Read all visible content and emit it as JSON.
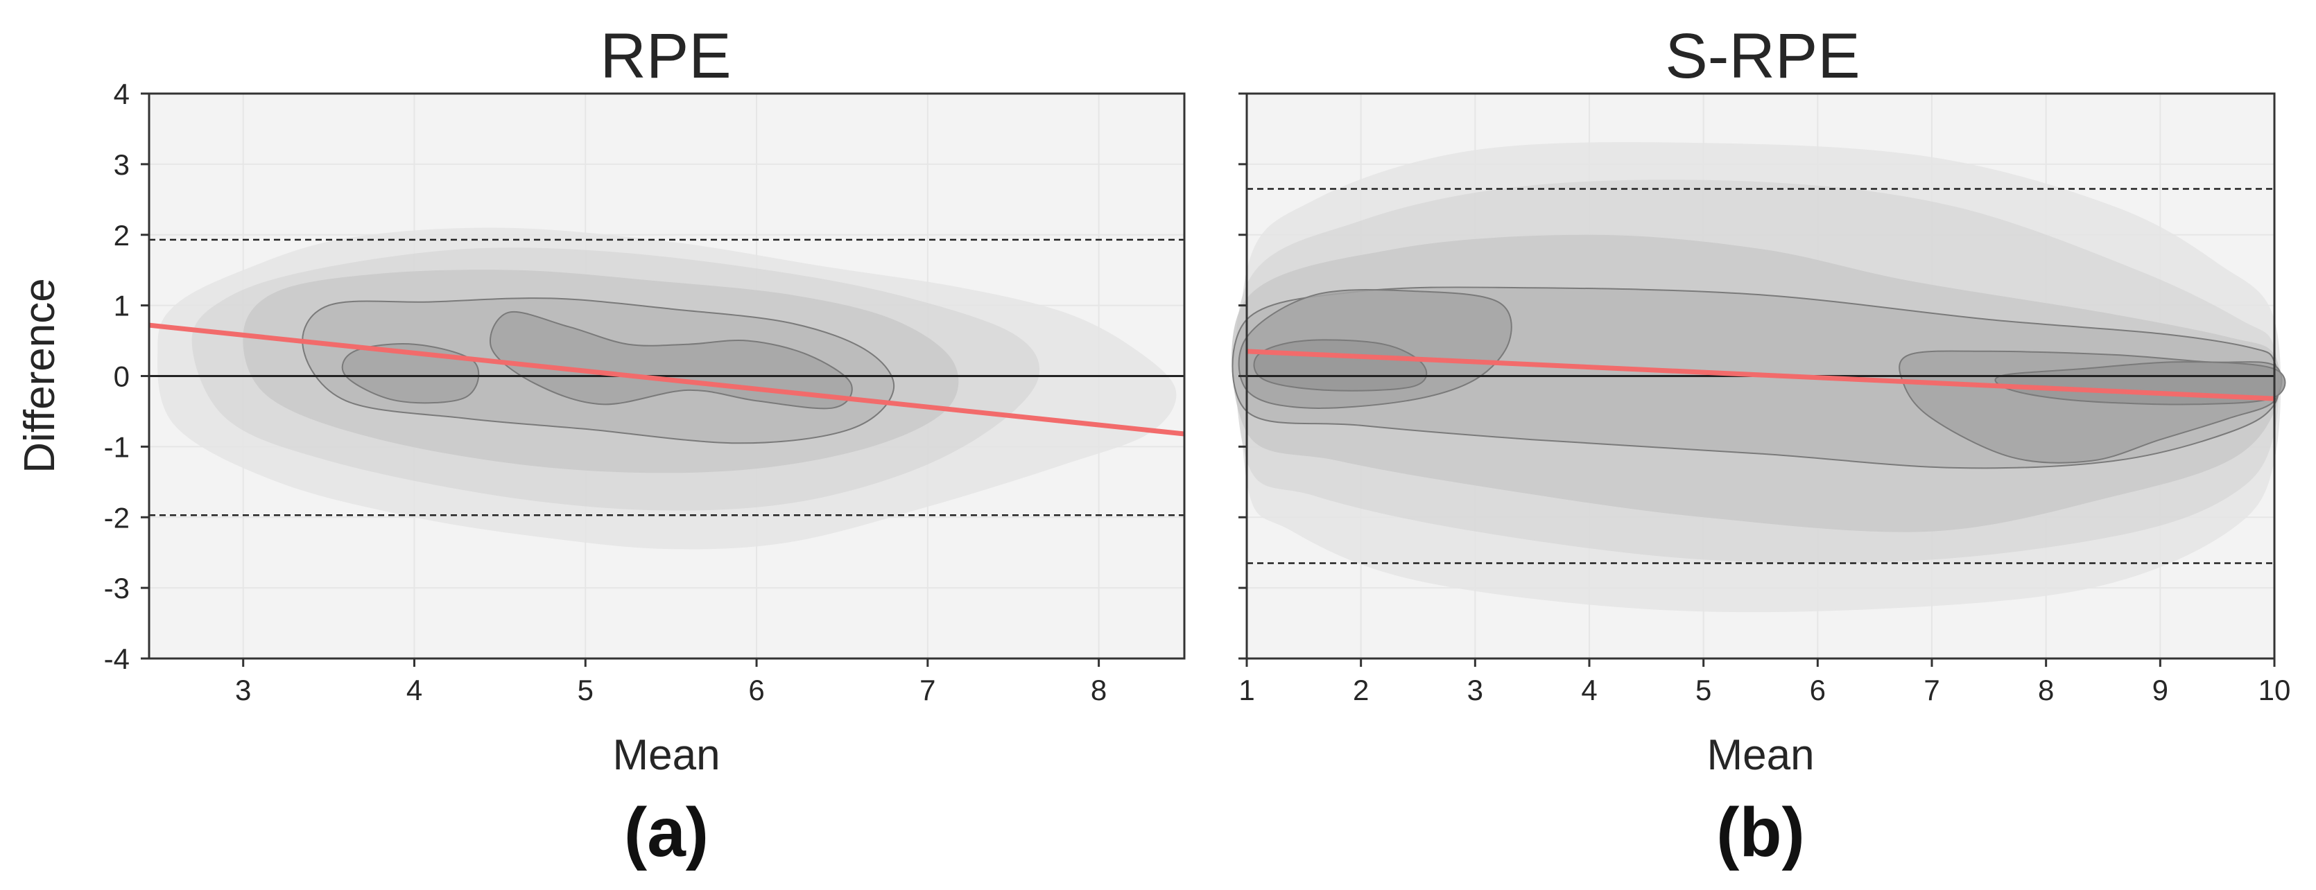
{
  "chart_data": [
    {
      "id": "a",
      "type": "contour",
      "title": "RPE",
      "panel_label": "(a)",
      "xlabel": "Mean",
      "ylabel": "Difference",
      "xlim": [
        2.45,
        8.5
      ],
      "ylim": [
        -4,
        4
      ],
      "xticks": [
        3,
        4,
        5,
        6,
        7,
        8
      ],
      "yticks": [
        -4,
        -3,
        -2,
        -1,
        0,
        1,
        2,
        3,
        4
      ],
      "grid": true,
      "zero_line": 0,
      "limits_of_agreement": [
        1.93,
        -1.97
      ],
      "regression_line": {
        "x": [
          2.45,
          8.5
        ],
        "y": [
          0.72,
          -0.82
        ],
        "color": "#f26b6b"
      },
      "density_contours": [
        {
          "level": 1,
          "fill": "#e4e4e4",
          "points": [
            [
              2.5,
              0.4
            ],
            [
              2.6,
              1.0
            ],
            [
              3.0,
              1.5
            ],
            [
              3.6,
              1.95
            ],
            [
              4.5,
              2.1
            ],
            [
              5.5,
              1.9
            ],
            [
              6.4,
              1.55
            ],
            [
              7.2,
              1.25
            ],
            [
              7.8,
              0.9
            ],
            [
              8.2,
              0.4
            ],
            [
              8.45,
              -0.2
            ],
            [
              8.3,
              -0.8
            ],
            [
              7.8,
              -1.25
            ],
            [
              7.0,
              -1.85
            ],
            [
              6.2,
              -2.35
            ],
            [
              5.5,
              -2.45
            ],
            [
              4.8,
              -2.3
            ],
            [
              4.0,
              -2.0
            ],
            [
              3.2,
              -1.5
            ],
            [
              2.6,
              -0.7
            ]
          ]
        },
        {
          "level": 2,
          "fill": "#d8d8d8",
          "points": [
            [
              2.7,
              0.5
            ],
            [
              2.9,
              1.1
            ],
            [
              3.4,
              1.5
            ],
            [
              4.3,
              1.8
            ],
            [
              5.2,
              1.75
            ],
            [
              6.2,
              1.45
            ],
            [
              6.9,
              1.1
            ],
            [
              7.5,
              0.6
            ],
            [
              7.65,
              0.0
            ],
            [
              7.4,
              -0.7
            ],
            [
              6.9,
              -1.35
            ],
            [
              6.2,
              -1.8
            ],
            [
              5.4,
              -1.9
            ],
            [
              4.5,
              -1.7
            ],
            [
              3.5,
              -1.2
            ],
            [
              2.9,
              -0.6
            ]
          ]
        },
        {
          "level": 3,
          "fill": "#c9c9c9",
          "points": [
            [
              3.0,
              0.6
            ],
            [
              3.2,
              1.2
            ],
            [
              3.8,
              1.45
            ],
            [
              4.6,
              1.5
            ],
            [
              5.4,
              1.35
            ],
            [
              6.2,
              1.15
            ],
            [
              6.8,
              0.8
            ],
            [
              7.15,
              0.2
            ],
            [
              7.1,
              -0.5
            ],
            [
              6.6,
              -1.05
            ],
            [
              5.8,
              -1.35
            ],
            [
              4.8,
              -1.3
            ],
            [
              3.8,
              -0.9
            ],
            [
              3.15,
              -0.3
            ]
          ]
        },
        {
          "level": 4,
          "fill": "#b8b8b8",
          "points": [
            [
              3.35,
              0.4
            ],
            [
              3.5,
              1.0
            ],
            [
              4.1,
              1.05
            ],
            [
              4.8,
              1.1
            ],
            [
              5.5,
              0.95
            ],
            [
              6.2,
              0.75
            ],
            [
              6.65,
              0.35
            ],
            [
              6.8,
              -0.2
            ],
            [
              6.55,
              -0.75
            ],
            [
              5.9,
              -0.95
            ],
            [
              5.0,
              -0.75
            ],
            [
              4.3,
              -0.6
            ],
            [
              3.6,
              -0.35
            ]
          ]
        },
        {
          "level": 5,
          "fill": "#a6a6a6",
          "points": [
            [
              4.55,
              0.9
            ],
            [
              4.9,
              0.7
            ],
            [
              5.25,
              0.45
            ],
            [
              5.6,
              0.45
            ],
            [
              5.95,
              0.5
            ],
            [
              6.3,
              0.3
            ],
            [
              6.55,
              -0.1
            ],
            [
              6.45,
              -0.45
            ],
            [
              6.0,
              -0.35
            ],
            [
              5.6,
              -0.2
            ],
            [
              5.1,
              -0.4
            ],
            [
              4.7,
              -0.1
            ],
            [
              4.45,
              0.4
            ]
          ]
        },
        {
          "level": 6,
          "fill": "#a6a6a6",
          "points": [
            [
              3.65,
              0.35
            ],
            [
              4.0,
              0.45
            ],
            [
              4.35,
              0.2
            ],
            [
              4.3,
              -0.3
            ],
            [
              3.9,
              -0.35
            ],
            [
              3.6,
              0.0
            ]
          ]
        }
      ]
    },
    {
      "id": "b",
      "type": "contour",
      "title": "S-RPE",
      "panel_label": "(b)",
      "xlabel": "Mean",
      "ylabel": "",
      "xlim": [
        1,
        10
      ],
      "ylim": [
        -4,
        4
      ],
      "xticks": [
        1,
        2,
        3,
        4,
        5,
        6,
        7,
        8,
        9,
        10
      ],
      "yticks": [
        -4,
        -3,
        -2,
        -1,
        0,
        1,
        2,
        3,
        4
      ],
      "grid": true,
      "zero_line": 0,
      "limits_of_agreement": [
        2.65,
        -2.65
      ],
      "regression_line": {
        "x": [
          1,
          10
        ],
        "y": [
          0.35,
          -0.32
        ],
        "color": "#f26b6b"
      },
      "density_contours": [
        {
          "level": 1,
          "fill": "#e4e4e4",
          "points": [
            [
              1.0,
              1.5
            ],
            [
              1.6,
              2.5
            ],
            [
              3.0,
              3.2
            ],
            [
              5.0,
              3.3
            ],
            [
              7.0,
              3.1
            ],
            [
              8.6,
              2.4
            ],
            [
              9.5,
              1.6
            ],
            [
              10.0,
              0.8
            ],
            [
              10.0,
              -1.2
            ],
            [
              9.6,
              -2.2
            ],
            [
              8.4,
              -3.0
            ],
            [
              6.5,
              -3.3
            ],
            [
              4.5,
              -3.3
            ],
            [
              2.5,
              -2.9
            ],
            [
              1.4,
              -2.2
            ],
            [
              1.0,
              -1.5
            ]
          ]
        },
        {
          "level": 2,
          "fill": "#d8d8d8",
          "points": [
            [
              1.0,
              1.3
            ],
            [
              2.0,
              2.2
            ],
            [
              3.5,
              2.7
            ],
            [
              5.5,
              2.75
            ],
            [
              7.2,
              2.4
            ],
            [
              8.8,
              1.5
            ],
            [
              9.7,
              0.8
            ],
            [
              10.0,
              0.4
            ],
            [
              10.0,
              -0.8
            ],
            [
              9.7,
              -1.6
            ],
            [
              8.8,
              -2.2
            ],
            [
              7.0,
              -2.6
            ],
            [
              5.0,
              -2.6
            ],
            [
              3.0,
              -2.2
            ],
            [
              1.6,
              -1.7
            ],
            [
              1.0,
              -1.2
            ]
          ]
        },
        {
          "level": 3,
          "fill": "#c9c9c9",
          "points": [
            [
              1.0,
              1.1
            ],
            [
              2.3,
              1.8
            ],
            [
              4.0,
              2.0
            ],
            [
              5.5,
              1.8
            ],
            [
              6.8,
              1.35
            ],
            [
              8.5,
              0.9
            ],
            [
              9.6,
              0.55
            ],
            [
              10.0,
              0.3
            ],
            [
              10.0,
              -0.5
            ],
            [
              9.6,
              -1.2
            ],
            [
              8.6,
              -1.7
            ],
            [
              7.0,
              -2.2
            ],
            [
              5.0,
              -2.0
            ],
            [
              3.2,
              -1.6
            ],
            [
              1.8,
              -1.2
            ],
            [
              1.0,
              -0.8
            ]
          ]
        },
        {
          "level": 4,
          "fill": "#b8b8b8",
          "points": [
            [
              1.0,
              0.8
            ],
            [
              2.0,
              1.2
            ],
            [
              3.5,
              1.25
            ],
            [
              5.5,
              1.15
            ],
            [
              7.5,
              0.8
            ],
            [
              9.0,
              0.6
            ],
            [
              9.8,
              0.4
            ],
            [
              10.0,
              0.2
            ],
            [
              10.0,
              -0.4
            ],
            [
              9.6,
              -0.8
            ],
            [
              8.6,
              -1.2
            ],
            [
              7.2,
              -1.3
            ],
            [
              5.5,
              -1.1
            ],
            [
              3.5,
              -0.9
            ],
            [
              2.0,
              -0.7
            ],
            [
              1.0,
              -0.5
            ]
          ]
        },
        {
          "level": 5,
          "fill": "#a6a6a6",
          "points": [
            [
              1.0,
              0.55
            ],
            [
              1.6,
              1.15
            ],
            [
              2.5,
              1.2
            ],
            [
              3.2,
              1.05
            ],
            [
              3.3,
              0.5
            ],
            [
              3.0,
              -0.05
            ],
            [
              2.4,
              -0.35
            ],
            [
              1.5,
              -0.45
            ],
            [
              1.0,
              -0.2
            ]
          ]
        },
        {
          "level": 6,
          "fill": "#a6a6a6",
          "points": [
            [
              6.8,
              0.3
            ],
            [
              7.5,
              0.35
            ],
            [
              8.6,
              0.3
            ],
            [
              9.4,
              0.2
            ],
            [
              10.0,
              0.15
            ],
            [
              10.0,
              -0.35
            ],
            [
              9.6,
              -0.6
            ],
            [
              9.0,
              -0.9
            ],
            [
              8.4,
              -1.2
            ],
            [
              7.7,
              -1.15
            ],
            [
              7.0,
              -0.6
            ],
            [
              6.75,
              -0.1
            ]
          ]
        },
        {
          "level": 7,
          "fill": "#989898",
          "points": [
            [
              1.1,
              0.3
            ],
            [
              1.5,
              0.5
            ],
            [
              2.2,
              0.45
            ],
            [
              2.55,
              0.15
            ],
            [
              2.45,
              -0.15
            ],
            [
              1.7,
              -0.2
            ],
            [
              1.15,
              -0.05
            ]
          ]
        },
        {
          "level": 8,
          "fill": "#989898",
          "points": [
            [
              7.6,
              0.0
            ],
            [
              8.3,
              0.1
            ],
            [
              9.2,
              0.2
            ],
            [
              10.0,
              0.1
            ],
            [
              10.0,
              -0.3
            ],
            [
              9.3,
              -0.4
            ],
            [
              8.3,
              -0.35
            ],
            [
              7.7,
              -0.2
            ]
          ]
        }
      ]
    }
  ]
}
